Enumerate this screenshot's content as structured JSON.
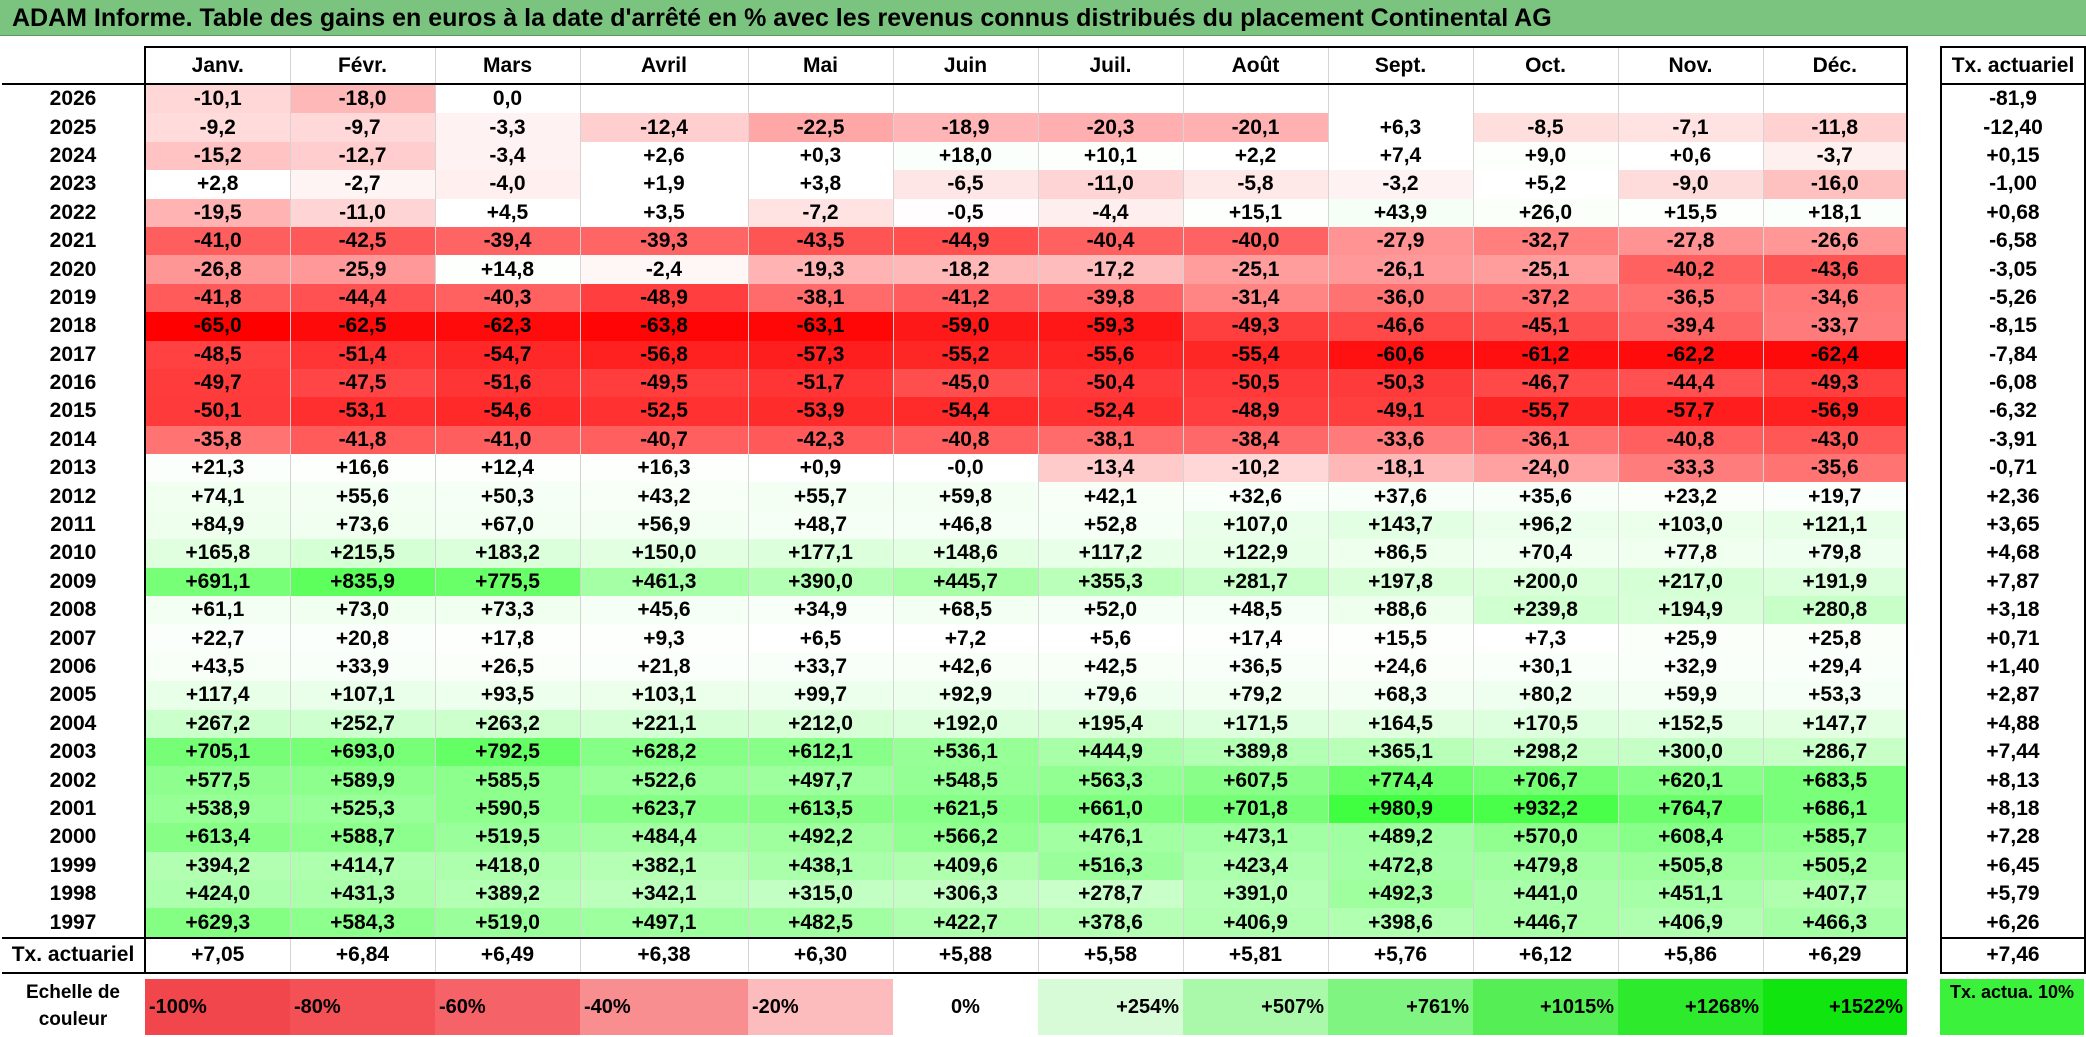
{
  "title": "ADAM Informe. Table des gains en euros à la date d'arrêté en % avec les revenus connus distribués du placement Continental AG",
  "months": [
    "Janv.",
    "Févr.",
    "Mars",
    "Avril",
    "Mai",
    "Juin",
    "Juil.",
    "Août",
    "Sept.",
    "Oct.",
    "Nov.",
    "Déc."
  ],
  "rate_header": "Tx. actuariel",
  "rows": [
    {
      "year": "2026",
      "values": [
        "-10,1",
        "-18,0",
        "0,0",
        "",
        "",
        "",
        "",
        "",
        "",
        "",
        "",
        ""
      ],
      "rate": "-81,9"
    },
    {
      "year": "2025",
      "values": [
        "-9,2",
        "-9,7",
        "-3,3",
        "-12,4",
        "-22,5",
        "-18,9",
        "-20,3",
        "-20,1",
        "+6,3",
        "-8,5",
        "-7,1",
        "-11,8"
      ],
      "rate": "-12,40"
    },
    {
      "year": "2024",
      "values": [
        "-15,2",
        "-12,7",
        "-3,4",
        "+2,6",
        "+0,3",
        "+18,0",
        "+10,1",
        "+2,2",
        "+7,4",
        "+9,0",
        "+0,6",
        "-3,7"
      ],
      "rate": "+0,15"
    },
    {
      "year": "2023",
      "values": [
        "+2,8",
        "-2,7",
        "-4,0",
        "+1,9",
        "+3,8",
        "-6,5",
        "-11,0",
        "-5,8",
        "-3,2",
        "+5,2",
        "-9,0",
        "-16,0"
      ],
      "rate": "-1,00"
    },
    {
      "year": "2022",
      "values": [
        "-19,5",
        "-11,0",
        "+4,5",
        "+3,5",
        "-7,2",
        "-0,5",
        "-4,4",
        "+15,1",
        "+43,9",
        "+26,0",
        "+15,5",
        "+18,1"
      ],
      "rate": "+0,68"
    },
    {
      "year": "2021",
      "values": [
        "-41,0",
        "-42,5",
        "-39,4",
        "-39,3",
        "-43,5",
        "-44,9",
        "-40,4",
        "-40,0",
        "-27,9",
        "-32,7",
        "-27,8",
        "-26,6"
      ],
      "rate": "-6,58"
    },
    {
      "year": "2020",
      "values": [
        "-26,8",
        "-25,9",
        "+14,8",
        "-2,4",
        "-19,3",
        "-18,2",
        "-17,2",
        "-25,1",
        "-26,1",
        "-25,1",
        "-40,2",
        "-43,6"
      ],
      "rate": "-3,05"
    },
    {
      "year": "2019",
      "values": [
        "-41,8",
        "-44,4",
        "-40,3",
        "-48,9",
        "-38,1",
        "-41,2",
        "-39,8",
        "-31,4",
        "-36,0",
        "-37,2",
        "-36,5",
        "-34,6"
      ],
      "rate": "-5,26"
    },
    {
      "year": "2018",
      "values": [
        "-65,0",
        "-62,5",
        "-62,3",
        "-63,8",
        "-63,1",
        "-59,0",
        "-59,3",
        "-49,3",
        "-46,6",
        "-45,1",
        "-39,4",
        "-33,7"
      ],
      "rate": "-8,15"
    },
    {
      "year": "2017",
      "values": [
        "-48,5",
        "-51,4",
        "-54,7",
        "-56,8",
        "-57,3",
        "-55,2",
        "-55,6",
        "-55,4",
        "-60,6",
        "-61,2",
        "-62,2",
        "-62,4"
      ],
      "rate": "-7,84"
    },
    {
      "year": "2016",
      "values": [
        "-49,7",
        "-47,5",
        "-51,6",
        "-49,5",
        "-51,7",
        "-45,0",
        "-50,4",
        "-50,5",
        "-50,3",
        "-46,7",
        "-44,4",
        "-49,3"
      ],
      "rate": "-6,08"
    },
    {
      "year": "2015",
      "values": [
        "-50,1",
        "-53,1",
        "-54,6",
        "-52,5",
        "-53,9",
        "-54,4",
        "-52,4",
        "-48,9",
        "-49,1",
        "-55,7",
        "-57,7",
        "-56,9"
      ],
      "rate": "-6,32"
    },
    {
      "year": "2014",
      "values": [
        "-35,8",
        "-41,8",
        "-41,0",
        "-40,7",
        "-42,3",
        "-40,8",
        "-38,1",
        "-38,4",
        "-33,6",
        "-36,1",
        "-40,8",
        "-43,0"
      ],
      "rate": "-3,91"
    },
    {
      "year": "2013",
      "values": [
        "+21,3",
        "+16,6",
        "+12,4",
        "+16,3",
        "+0,9",
        "-0,0",
        "-13,4",
        "-10,2",
        "-18,1",
        "-24,0",
        "-33,3",
        "-35,6"
      ],
      "rate": "-0,71"
    },
    {
      "year": "2012",
      "values": [
        "+74,1",
        "+55,6",
        "+50,3",
        "+43,2",
        "+55,7",
        "+59,8",
        "+42,1",
        "+32,6",
        "+37,6",
        "+35,6",
        "+23,2",
        "+19,7"
      ],
      "rate": "+2,36"
    },
    {
      "year": "2011",
      "values": [
        "+84,9",
        "+73,6",
        "+67,0",
        "+56,9",
        "+48,7",
        "+46,8",
        "+52,8",
        "+107,0",
        "+143,7",
        "+96,2",
        "+103,0",
        "+121,1"
      ],
      "rate": "+3,65"
    },
    {
      "year": "2010",
      "values": [
        "+165,8",
        "+215,5",
        "+183,2",
        "+150,0",
        "+177,1",
        "+148,6",
        "+117,2",
        "+122,9",
        "+86,5",
        "+70,4",
        "+77,8",
        "+79,8"
      ],
      "rate": "+4,68"
    },
    {
      "year": "2009",
      "values": [
        "+691,1",
        "+835,9",
        "+775,5",
        "+461,3",
        "+390,0",
        "+445,7",
        "+355,3",
        "+281,7",
        "+197,8",
        "+200,0",
        "+217,0",
        "+191,9"
      ],
      "rate": "+7,87"
    },
    {
      "year": "2008",
      "values": [
        "+61,1",
        "+73,0",
        "+73,3",
        "+45,6",
        "+34,9",
        "+68,5",
        "+52,0",
        "+48,5",
        "+88,6",
        "+239,8",
        "+194,9",
        "+280,8"
      ],
      "rate": "+3,18"
    },
    {
      "year": "2007",
      "values": [
        "+22,7",
        "+20,8",
        "+17,8",
        "+9,3",
        "+6,5",
        "+7,2",
        "+5,6",
        "+17,4",
        "+15,5",
        "+7,3",
        "+25,9",
        "+25,8"
      ],
      "rate": "+0,71"
    },
    {
      "year": "2006",
      "values": [
        "+43,5",
        "+33,9",
        "+26,5",
        "+21,8",
        "+33,7",
        "+42,6",
        "+42,5",
        "+36,5",
        "+24,6",
        "+30,1",
        "+32,9",
        "+29,4"
      ],
      "rate": "+1,40"
    },
    {
      "year": "2005",
      "values": [
        "+117,4",
        "+107,1",
        "+93,5",
        "+103,1",
        "+99,7",
        "+92,9",
        "+79,6",
        "+79,2",
        "+68,3",
        "+80,2",
        "+59,9",
        "+53,3"
      ],
      "rate": "+2,87"
    },
    {
      "year": "2004",
      "values": [
        "+267,2",
        "+252,7",
        "+263,2",
        "+221,1",
        "+212,0",
        "+192,0",
        "+195,4",
        "+171,5",
        "+164,5",
        "+170,5",
        "+152,5",
        "+147,7"
      ],
      "rate": "+4,88"
    },
    {
      "year": "2003",
      "values": [
        "+705,1",
        "+693,0",
        "+792,5",
        "+628,2",
        "+612,1",
        "+536,1",
        "+444,9",
        "+389,8",
        "+365,1",
        "+298,2",
        "+300,0",
        "+286,7"
      ],
      "rate": "+7,44"
    },
    {
      "year": "2002",
      "values": [
        "+577,5",
        "+589,9",
        "+585,5",
        "+522,6",
        "+497,7",
        "+548,5",
        "+563,3",
        "+607,5",
        "+774,4",
        "+706,7",
        "+620,1",
        "+683,5"
      ],
      "rate": "+8,13"
    },
    {
      "year": "2001",
      "values": [
        "+538,9",
        "+525,3",
        "+590,5",
        "+623,7",
        "+613,5",
        "+621,5",
        "+661,0",
        "+701,8",
        "+980,9",
        "+932,2",
        "+764,7",
        "+686,1"
      ],
      "rate": "+8,18"
    },
    {
      "year": "2000",
      "values": [
        "+613,4",
        "+588,7",
        "+519,5",
        "+484,4",
        "+492,2",
        "+566,2",
        "+476,1",
        "+473,1",
        "+489,2",
        "+570,0",
        "+608,4",
        "+585,7"
      ],
      "rate": "+7,28"
    },
    {
      "year": "1999",
      "values": [
        "+394,2",
        "+414,7",
        "+418,0",
        "+382,1",
        "+438,1",
        "+409,6",
        "+516,3",
        "+423,4",
        "+472,8",
        "+479,8",
        "+505,8",
        "+505,2"
      ],
      "rate": "+6,45"
    },
    {
      "year": "1998",
      "values": [
        "+424,0",
        "+431,3",
        "+389,2",
        "+342,1",
        "+315,0",
        "+306,3",
        "+278,7",
        "+391,0",
        "+492,3",
        "+441,0",
        "+451,1",
        "+407,7"
      ],
      "rate": "+5,79"
    },
    {
      "year": "1997",
      "values": [
        "+629,3",
        "+584,3",
        "+519,0",
        "+497,1",
        "+482,5",
        "+422,7",
        "+378,6",
        "+406,9",
        "+398,6",
        "+446,7",
        "+406,9",
        "+466,3"
      ],
      "rate": "+6,26"
    }
  ],
  "avg_row": {
    "label": "Tx. actuariel",
    "values": [
      "+7,05",
      "+6,84",
      "+6,49",
      "+6,38",
      "+6,30",
      "+5,88",
      "+5,58",
      "+5,81",
      "+5,76",
      "+6,12",
      "+5,86",
      "+6,29"
    ],
    "rate": "+7,46"
  },
  "legend": {
    "label": "Echelle de couleur",
    "cells": [
      {
        "text": "-100%",
        "color": "#f0464c",
        "align": "left"
      },
      {
        "text": "-80%",
        "color": "#f35155",
        "align": "left"
      },
      {
        "text": "-60%",
        "color": "#f56268",
        "align": "left"
      },
      {
        "text": "-40%",
        "color": "#f98e90",
        "align": "left"
      },
      {
        "text": "-20%",
        "color": "#fcbcbd",
        "align": "left"
      },
      {
        "text": "0%",
        "color": "#ffffff",
        "align": "center"
      },
      {
        "text": "+254%",
        "color": "#d6fbd6",
        "align": "right"
      },
      {
        "text": "+507%",
        "color": "#aaf9aa",
        "align": "right"
      },
      {
        "text": "+761%",
        "color": "#80f480",
        "align": "right"
      },
      {
        "text": "+1015%",
        "color": "#55ef55",
        "align": "right"
      },
      {
        "text": "+1268%",
        "color": "#2dea2d",
        "align": "right"
      },
      {
        "text": "+1522%",
        "color": "#10e510",
        "align": "right"
      }
    ],
    "rate_label": "Tx. actua. 10%",
    "rate_color": "#3cf13c"
  },
  "colors": {
    "title_bg": "#7bc47f",
    "neg_max": "#ff0000",
    "pos_max": "#3cff3c"
  }
}
